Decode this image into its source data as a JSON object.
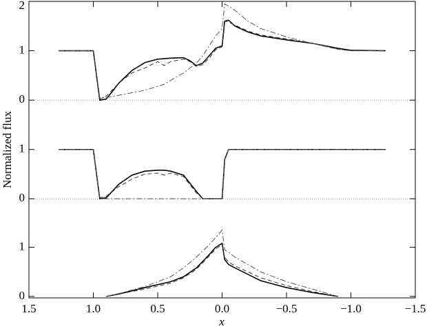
{
  "chart_data": [
    {
      "type": "line",
      "ylim": [
        -0.5,
        2
      ],
      "yticks": [
        0,
        1,
        2
      ],
      "zero_line": true,
      "x": [
        1.27,
        1.0,
        0.95,
        0.9,
        0.8,
        0.7,
        0.6,
        0.5,
        0.45,
        0.4,
        0.3,
        0.25,
        0.2,
        0.15,
        0.1,
        0.05,
        0.0,
        -0.02,
        -0.05,
        -0.1,
        -0.2,
        -0.3,
        -0.5,
        -0.7,
        -0.9,
        -1.0,
        -1.27
      ],
      "series": [
        {
          "color": "#000000",
          "dash": "solid",
          "values": [
            1,
            1,
            0.0,
            0.02,
            0.35,
            0.6,
            0.76,
            0.83,
            0.84,
            0.85,
            0.86,
            0.8,
            0.7,
            0.75,
            0.9,
            1.05,
            1.1,
            1.6,
            1.62,
            1.5,
            1.38,
            1.3,
            1.22,
            1.15,
            1.05,
            1.01,
            1.0
          ]
        },
        {
          "color": "#333333",
          "dash": "dashed",
          "values": [
            1,
            1,
            0.02,
            0.08,
            0.35,
            0.55,
            0.65,
            0.78,
            0.7,
            0.78,
            0.83,
            0.78,
            0.68,
            0.72,
            0.85,
            1.02,
            1.08,
            1.6,
            1.58,
            1.52,
            1.4,
            1.32,
            1.24,
            1.15,
            1.03,
            1.0,
            1.0
          ]
        },
        {
          "color": "#555555",
          "dash": "dashdot",
          "values": [
            1,
            1,
            0.05,
            0.05,
            0.1,
            0.15,
            0.2,
            0.28,
            0.32,
            0.4,
            0.55,
            0.65,
            0.75,
            0.9,
            1.1,
            1.3,
            1.45,
            1.95,
            1.9,
            1.82,
            1.6,
            1.45,
            1.28,
            1.15,
            1.03,
            1.0,
            1.0
          ]
        }
      ]
    },
    {
      "type": "line",
      "ylim": [
        -0.5,
        1.5
      ],
      "yticks": [
        0,
        1
      ],
      "zero_line": true,
      "ylabel": "Normalized flux",
      "x": [
        1.27,
        1.0,
        0.95,
        0.9,
        0.8,
        0.7,
        0.6,
        0.5,
        0.45,
        0.4,
        0.3,
        0.2,
        0.15,
        0.1,
        0.05,
        0.0,
        -0.02,
        -0.05,
        -0.2,
        -0.5,
        -1.0,
        -1.27
      ],
      "series": [
        {
          "color": "#000000",
          "dash": "solid",
          "values": [
            1,
            1,
            0,
            0.02,
            0.3,
            0.48,
            0.56,
            0.58,
            0.58,
            0.56,
            0.48,
            0.15,
            0,
            0,
            0,
            0,
            0.8,
            1.0,
            1.0,
            1.0,
            1.0,
            1.0
          ]
        },
        {
          "color": "#333333",
          "dash": "dashed",
          "values": [
            1,
            1,
            0.02,
            0.05,
            0.25,
            0.4,
            0.5,
            0.52,
            0.48,
            0.52,
            0.45,
            0.12,
            0,
            0,
            0,
            0,
            0.8,
            1,
            1,
            1,
            1,
            1
          ]
        },
        {
          "color": "#555555",
          "dash": "dashdot",
          "values": [
            1,
            1,
            0,
            0,
            0,
            0,
            0,
            0,
            0,
            0,
            0,
            0,
            0,
            0,
            0,
            0,
            0.8,
            1,
            1,
            1,
            1,
            1
          ]
        }
      ]
    },
    {
      "type": "line",
      "ylim": [
        -0.03,
        1.5
      ],
      "yticks": [
        0,
        1
      ],
      "zero_line": false,
      "xlabel": "x",
      "xlim": [
        1.5,
        -1.5
      ],
      "xticks": [
        1.5,
        {
          "value": 1,
          "label": "1.0"
        },
        0.5,
        {
          "value": 0,
          "label": "0.0"
        },
        {
          "value": -0.5,
          "label": "−0.5"
        },
        {
          "value": -1,
          "label": "−1.0"
        },
        {
          "value": -1.5,
          "label": "−1.5"
        }
      ],
      "x": [
        0.9,
        0.8,
        0.6,
        0.4,
        0.3,
        0.2,
        0.1,
        0.05,
        0.0,
        -0.02,
        -0.05,
        -0.1,
        -0.2,
        -0.3,
        -0.5,
        -0.7,
        -0.9
      ],
      "series": [
        {
          "color": "#000000",
          "dash": "solid",
          "values": [
            0,
            0.05,
            0.18,
            0.3,
            0.4,
            0.58,
            0.85,
            1.0,
            1.08,
            0.75,
            0.65,
            0.58,
            0.45,
            0.32,
            0.18,
            0.08,
            0
          ]
        },
        {
          "color": "#333333",
          "dash": "dashed",
          "values": [
            0,
            0.05,
            0.15,
            0.27,
            0.38,
            0.55,
            0.82,
            0.97,
            1.05,
            0.8,
            0.7,
            0.62,
            0.5,
            0.38,
            0.22,
            0.1,
            0
          ]
        },
        {
          "color": "#555555",
          "dash": "dashdot",
          "values": [
            0,
            0.06,
            0.2,
            0.4,
            0.58,
            0.8,
            1.05,
            1.2,
            1.35,
            0.95,
            0.9,
            0.8,
            0.65,
            0.5,
            0.3,
            0.15,
            0
          ]
        }
      ]
    }
  ]
}
